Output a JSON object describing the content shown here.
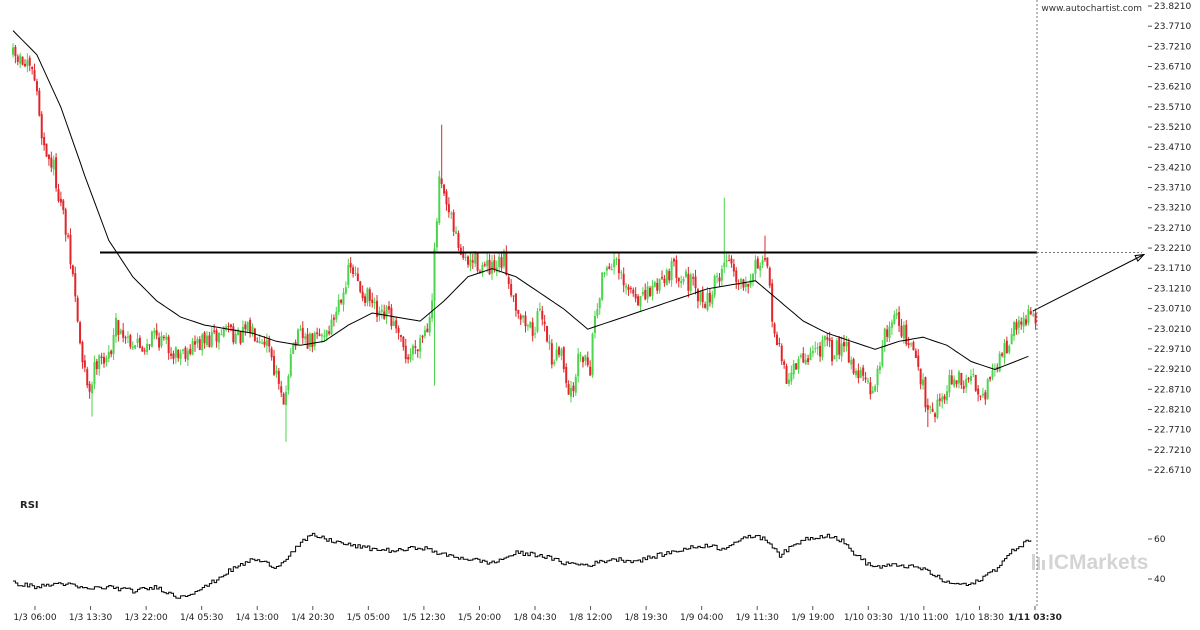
{
  "source": "www.autochartist.com",
  "watermark": "ICMarkets",
  "colors": {
    "up": "#4cd44c",
    "down": "#e0262a",
    "line": "#000000",
    "pattern": "#000000"
  },
  "chart_data": {
    "type": "candlestick",
    "price_axis": {
      "ticks": [
        "23.8210",
        "23.7710",
        "23.7210",
        "23.6710",
        "23.6210",
        "23.5710",
        "23.5210",
        "23.4710",
        "23.4210",
        "23.3710",
        "23.3210",
        "23.2710",
        "23.2210",
        "23.1710",
        "23.1210",
        "23.0710",
        "23.0210",
        "22.9710",
        "22.9210",
        "22.8710",
        "22.8210",
        "22.7710",
        "22.7210",
        "22.6710"
      ],
      "range": [
        22.661,
        23.821
      ]
    },
    "time_axis": {
      "ticks": [
        "1/3 06:00",
        "1/3 13:30",
        "1/3 22:00",
        "1/4 05:30",
        "1/4 13:00",
        "1/4 20:30",
        "1/5 05:00",
        "1/5 12:30",
        "1/5 20:00",
        "1/8 04:30",
        "1/8 12:00",
        "1/8 19:30",
        "1/9 04:00",
        "1/9 11:30",
        "1/9 19:00",
        "1/10 03:30",
        "1/10 11:00",
        "1/10 18:30",
        "1/11 03:30"
      ],
      "current": "1/11 03:30"
    },
    "price_anchors": [
      [
        0,
        23.7
      ],
      [
        5,
        23.68
      ],
      [
        10,
        23.64
      ],
      [
        14,
        23.47
      ],
      [
        18,
        23.42
      ],
      [
        22,
        23.3
      ],
      [
        26,
        23.15
      ],
      [
        30,
        22.93
      ],
      [
        33,
        22.87
      ],
      [
        37,
        22.97
      ],
      [
        40,
        22.93
      ],
      [
        44,
        23.03
      ],
      [
        50,
        22.995
      ],
      [
        55,
        22.975
      ],
      [
        60,
        23.01
      ],
      [
        66,
        22.975
      ],
      [
        70,
        22.96
      ],
      [
        76,
        22.98
      ],
      [
        82,
        22.99
      ],
      [
        86,
        23.0
      ],
      [
        91,
        23.03
      ],
      [
        95,
        22.995
      ],
      [
        100,
        23.02
      ],
      [
        104,
        23.01
      ],
      [
        108,
        22.985
      ],
      [
        111,
        22.9
      ],
      [
        114,
        22.82
      ],
      [
        117,
        22.975
      ],
      [
        121,
        23.0
      ],
      [
        125,
        22.985
      ],
      [
        130,
        23.005
      ],
      [
        134,
        23.03
      ],
      [
        138,
        23.11
      ],
      [
        142,
        23.17
      ],
      [
        146,
        23.12
      ],
      [
        150,
        23.09
      ],
      [
        154,
        23.04
      ],
      [
        158,
        23.06
      ],
      [
        162,
        22.99
      ],
      [
        166,
        22.95
      ],
      [
        170,
        22.99
      ],
      [
        174,
        23.03
      ],
      [
        176,
        23.11
      ],
      [
        179,
        23.38
      ],
      [
        183,
        23.3
      ],
      [
        187,
        23.23
      ],
      [
        190,
        23.18
      ],
      [
        194,
        23.19
      ],
      [
        198,
        23.17
      ],
      [
        202,
        23.16
      ],
      [
        206,
        23.19
      ],
      [
        210,
        23.1
      ],
      [
        214,
        23.04
      ],
      [
        218,
        23.02
      ],
      [
        222,
        23.06
      ],
      [
        226,
        22.95
      ],
      [
        230,
        22.96
      ],
      [
        234,
        22.85
      ],
      [
        238,
        22.97
      ],
      [
        242,
        22.93
      ],
      [
        244,
        23.06
      ],
      [
        248,
        23.17
      ],
      [
        252,
        23.19
      ],
      [
        256,
        23.12
      ],
      [
        260,
        23.11
      ],
      [
        264,
        23.09
      ],
      [
        268,
        23.12
      ],
      [
        272,
        23.15
      ],
      [
        276,
        23.17
      ],
      [
        280,
        23.16
      ],
      [
        284,
        23.13
      ],
      [
        288,
        23.09
      ],
      [
        292,
        23.1
      ],
      [
        296,
        23.16
      ],
      [
        300,
        23.2
      ],
      [
        304,
        23.14
      ],
      [
        308,
        23.15
      ],
      [
        312,
        23.19
      ],
      [
        316,
        23.16
      ],
      [
        318,
        23.06
      ],
      [
        320,
        22.98
      ],
      [
        324,
        22.9
      ],
      [
        328,
        22.93
      ],
      [
        332,
        22.95
      ],
      [
        336,
        22.97
      ],
      [
        340,
        22.98
      ],
      [
        344,
        22.96
      ],
      [
        348,
        23.0
      ],
      [
        352,
        22.92
      ],
      [
        356,
        22.9
      ],
      [
        360,
        22.85
      ],
      [
        362,
        22.93
      ],
      [
        366,
        23.02
      ],
      [
        370,
        23.06
      ],
      [
        374,
        22.99
      ],
      [
        378,
        22.95
      ],
      [
        382,
        22.85
      ],
      [
        386,
        22.82
      ],
      [
        390,
        22.87
      ],
      [
        394,
        22.9
      ],
      [
        398,
        22.88
      ],
      [
        402,
        22.9
      ],
      [
        406,
        22.86
      ],
      [
        410,
        22.9
      ],
      [
        414,
        22.96
      ],
      [
        418,
        23.01
      ],
      [
        422,
        23.04
      ],
      [
        425,
        23.05
      ]
    ],
    "moving_average_anchors": [
      [
        0,
        23.76
      ],
      [
        10,
        23.7
      ],
      [
        20,
        23.57
      ],
      [
        30,
        23.4
      ],
      [
        40,
        23.24
      ],
      [
        50,
        23.15
      ],
      [
        60,
        23.09
      ],
      [
        70,
        23.05
      ],
      [
        80,
        23.03
      ],
      [
        90,
        23.02
      ],
      [
        100,
        23.01
      ],
      [
        110,
        22.99
      ],
      [
        120,
        22.98
      ],
      [
        130,
        22.99
      ],
      [
        140,
        23.03
      ],
      [
        150,
        23.06
      ],
      [
        160,
        23.05
      ],
      [
        170,
        23.04
      ],
      [
        180,
        23.09
      ],
      [
        190,
        23.15
      ],
      [
        200,
        23.17
      ],
      [
        210,
        23.15
      ],
      [
        220,
        23.11
      ],
      [
        230,
        23.07
      ],
      [
        240,
        23.02
      ],
      [
        250,
        23.04
      ],
      [
        260,
        23.06
      ],
      [
        270,
        23.08
      ],
      [
        280,
        23.1
      ],
      [
        290,
        23.12
      ],
      [
        300,
        23.13
      ],
      [
        310,
        23.14
      ],
      [
        320,
        23.09
      ],
      [
        330,
        23.04
      ],
      [
        340,
        23.01
      ],
      [
        350,
        22.99
      ],
      [
        360,
        22.97
      ],
      [
        370,
        22.99
      ],
      [
        380,
        23.0
      ],
      [
        390,
        22.98
      ],
      [
        400,
        22.94
      ],
      [
        410,
        22.92
      ],
      [
        425,
        22.955
      ]
    ],
    "resistance_level": 23.21,
    "projection": {
      "to_index": 455,
      "to_price": 23.21
    },
    "rsi": {
      "title": "RSI",
      "ticks": [
        "60",
        "40"
      ],
      "tick_values": [
        60,
        40
      ],
      "range": [
        27,
        72
      ],
      "anchors": [
        [
          0,
          38
        ],
        [
          10,
          36
        ],
        [
          20,
          38
        ],
        [
          30,
          35
        ],
        [
          40,
          36
        ],
        [
          50,
          34
        ],
        [
          60,
          36
        ],
        [
          68,
          31
        ],
        [
          72,
          32
        ],
        [
          80,
          36
        ],
        [
          90,
          44
        ],
        [
          100,
          50
        ],
        [
          110,
          46
        ],
        [
          120,
          58
        ],
        [
          125,
          62
        ],
        [
          130,
          60
        ],
        [
          140,
          57
        ],
        [
          150,
          55
        ],
        [
          160,
          54
        ],
        [
          170,
          56
        ],
        [
          180,
          52
        ],
        [
          190,
          50
        ],
        [
          200,
          48
        ],
        [
          210,
          53
        ],
        [
          220,
          52
        ],
        [
          230,
          48
        ],
        [
          240,
          47
        ],
        [
          250,
          50
        ],
        [
          260,
          49
        ],
        [
          270,
          52
        ],
        [
          280,
          55
        ],
        [
          290,
          57
        ],
        [
          296,
          55
        ],
        [
          300,
          58
        ],
        [
          305,
          60
        ],
        [
          310,
          62
        ],
        [
          316,
          58
        ],
        [
          320,
          52
        ],
        [
          330,
          60
        ],
        [
          340,
          62
        ],
        [
          346,
          59
        ],
        [
          350,
          54
        ],
        [
          356,
          48
        ],
        [
          360,
          46
        ],
        [
          370,
          47
        ],
        [
          380,
          45
        ],
        [
          390,
          38
        ],
        [
          400,
          37
        ],
        [
          410,
          45
        ],
        [
          418,
          55
        ],
        [
          425,
          60
        ]
      ]
    }
  }
}
